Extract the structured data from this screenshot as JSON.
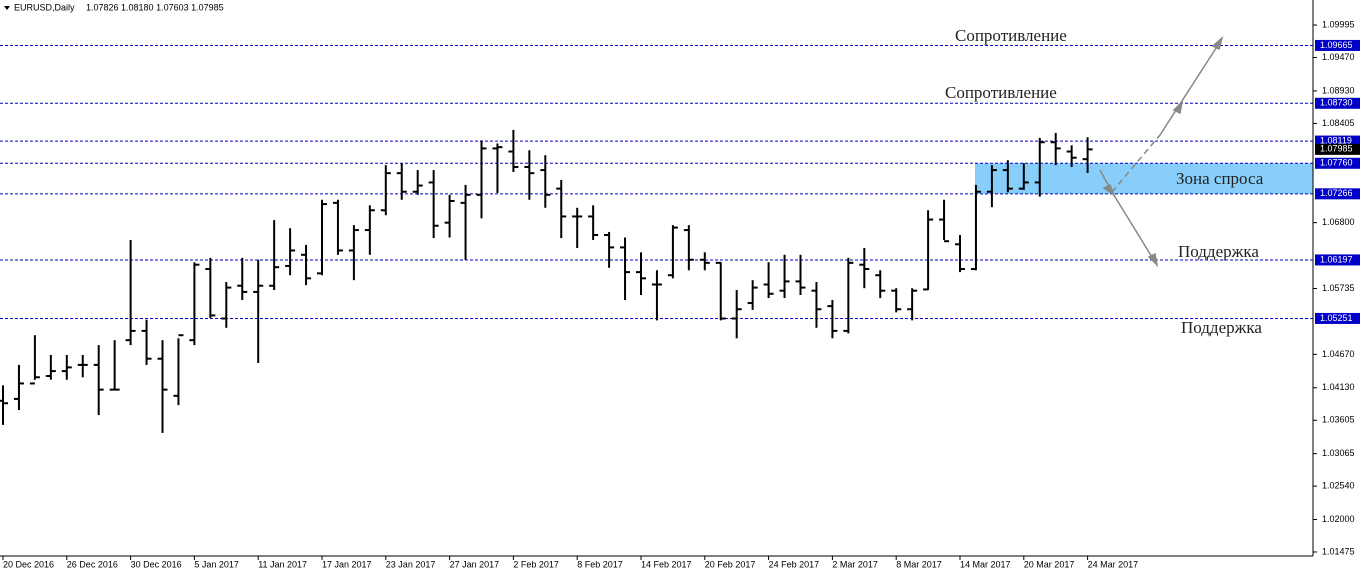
{
  "chart_data": {
    "type": "ohlc",
    "title": "EURUSD,Daily",
    "ohlc_text": "1.07826 1.08180 1.07603 1.07985",
    "categories": [
      "20 Dec 2016",
      null,
      null,
      null,
      "26 Dec 2016",
      null,
      null,
      null,
      "30 Dec 2016",
      null,
      null,
      null,
      "5 Jan 2017",
      null,
      null,
      null,
      "11 Jan 2017",
      null,
      null,
      null,
      "17 Jan 2017",
      null,
      null,
      null,
      "23 Jan 2017",
      null,
      null,
      null,
      "27 Jan 2017",
      null,
      null,
      null,
      "2 Feb 2017",
      null,
      null,
      null,
      "8 Feb 2017",
      null,
      null,
      null,
      "14 Feb 2017",
      null,
      null,
      null,
      "20 Feb 2017",
      null,
      null,
      null,
      "24 Feb 2017",
      null,
      null,
      null,
      "2 Mar 2017",
      null,
      null,
      null,
      "8 Mar 2017",
      null,
      null,
      null,
      "14 Mar 2017",
      null,
      null,
      null,
      "20 Mar 2017",
      null,
      null,
      null,
      "24 Mar 2017"
    ],
    "open": [
      1.0392,
      1.0395,
      1.042,
      1.0432,
      1.044,
      1.045,
      1.045,
      1.041,
      1.049,
      1.0505,
      1.046,
      1.04,
      1.049,
      1.0605,
      1.0525,
      1.0578,
      1.0568,
      1.0578,
      1.061,
      1.0628,
      1.0598,
      1.0712,
      1.0635,
      1.0668,
      1.07,
      1.076,
      1.073,
      1.0745,
      1.068,
      1.0712,
      1.0725,
      1.08,
      1.0795,
      1.077,
      1.0765,
      1.0735,
      1.069,
      1.069,
      1.066,
      1.064,
      1.06,
      1.058,
      1.0595,
      1.0668,
      1.062,
      1.0615,
      1.0525,
      1.055,
      1.058,
      1.057,
      1.0585,
      1.057,
      1.0545,
      1.0505,
      1.0612,
      1.0595,
      1.057,
      1.054,
      1.0572,
      1.0685,
      1.0645,
      1.0605,
      1.073,
      1.0765,
      1.0735,
      1.0745,
      1.081,
      1.0795,
      1.07826
    ],
    "high": [
      1.0417,
      1.045,
      1.0498,
      1.0466,
      1.0466,
      1.0466,
      1.0482,
      1.049,
      1.0652,
      1.0523,
      1.049,
      1.0493,
      1.0616,
      1.0623,
      1.0584,
      1.0623,
      1.062,
      1.0684,
      1.0671,
      1.0644,
      1.0717,
      1.0717,
      1.0676,
      1.0708,
      1.0773,
      1.0776,
      1.0765,
      1.0765,
      1.0725,
      1.0741,
      1.0813,
      1.0808,
      1.083,
      1.0797,
      1.0789,
      1.0749,
      1.0704,
      1.0708,
      1.0665,
      1.0656,
      1.0632,
      1.0603,
      1.0676,
      1.0676,
      1.0632,
      1.0616,
      1.0571,
      1.0587,
      1.0616,
      1.0628,
      1.0628,
      1.0584,
      1.0555,
      1.0623,
      1.0639,
      1.0603,
      1.0574,
      1.0574,
      1.07,
      1.0717,
      1.066,
      1.0741,
      1.0773,
      1.0781,
      1.0776,
      1.0817,
      1.0825,
      1.0805,
      1.0818
    ],
    "low": [
      1.0353,
      1.0377,
      1.0426,
      1.0426,
      1.0426,
      1.043,
      1.0369,
      1.041,
      1.0482,
      1.045,
      1.034,
      1.0385,
      1.0482,
      1.0526,
      1.051,
      1.0555,
      1.0453,
      1.0571,
      1.0595,
      1.0579,
      1.0595,
      1.0628,
      1.0587,
      1.0628,
      1.0692,
      1.0717,
      1.0725,
      1.0655,
      1.0656,
      1.062,
      1.0687,
      1.0728,
      1.0762,
      1.0717,
      1.0704,
      1.0655,
      1.0639,
      1.0652,
      1.0607,
      1.0555,
      1.0563,
      1.0522,
      1.059,
      1.0603,
      1.0603,
      1.0522,
      1.0493,
      1.0539,
      1.0558,
      1.0558,
      1.0563,
      1.051,
      1.0493,
      1.0501,
      1.0574,
      1.0558,
      1.0535,
      1.0522,
      1.0571,
      1.0652,
      1.06,
      1.0603,
      1.0705,
      1.0729,
      1.0733,
      1.0722,
      1.0773,
      1.077,
      1.07603
    ],
    "close": [
      1.0388,
      1.042,
      1.043,
      1.044,
      1.0446,
      1.045,
      1.041,
      1.041,
      1.0505,
      1.046,
      1.041,
      1.0498,
      1.0612,
      1.053,
      1.0575,
      1.0568,
      1.0578,
      1.0608,
      1.0635,
      1.059,
      1.071,
      1.0635,
      1.0668,
      1.07,
      1.076,
      1.073,
      1.074,
      1.0675,
      1.0715,
      1.0725,
      1.08,
      1.0802,
      1.077,
      1.076,
      1.0725,
      1.069,
      1.069,
      1.066,
      1.064,
      1.06,
      1.059,
      1.058,
      1.0672,
      1.062,
      1.0615,
      1.0525,
      1.054,
      1.0575,
      1.0565,
      1.0585,
      1.0575,
      1.054,
      1.0505,
      1.0615,
      1.0605,
      1.057,
      1.054,
      1.057,
      1.0685,
      1.065,
      1.0605,
      1.073,
      1.0765,
      1.0735,
      1.0745,
      1.081,
      1.08,
      1.0785,
      1.07985
    ],
    "color": "#000000",
    "ylim": [
      1.0141,
      1.104
    ],
    "yticks": [
      1.09995,
      {
        "value": 1.0947,
        "label": "1.09470"
      },
      {
        "value": 1.0893,
        "label": "1.08930"
      },
      1.08405,
      {
        "value": 1.068,
        "label": "1.06800"
      },
      1.05735,
      {
        "value": 1.0467,
        "label": "1.04670"
      },
      {
        "value": 1.0413,
        "label": "1.04130"
      },
      1.03605,
      1.03065,
      {
        "value": 1.0254,
        "label": "1.02540"
      },
      {
        "value": 1.02,
        "label": "1.02000"
      },
      1.01475
    ],
    "levels": [
      1.09665,
      {
        "value": 1.0873,
        "label": "1.08730"
      },
      1.08119,
      {
        "value": 1.0776,
        "label": "1.07760"
      },
      1.07266,
      1.06197,
      1.05251
    ],
    "level_color": "#0000c8",
    "zone_color": "#87cefa",
    "annotations": [
      "Сопротивление",
      "Сопротивление",
      "Зона спроса",
      "Поддержка",
      "Поддержка"
    ],
    "grid": false
  }
}
